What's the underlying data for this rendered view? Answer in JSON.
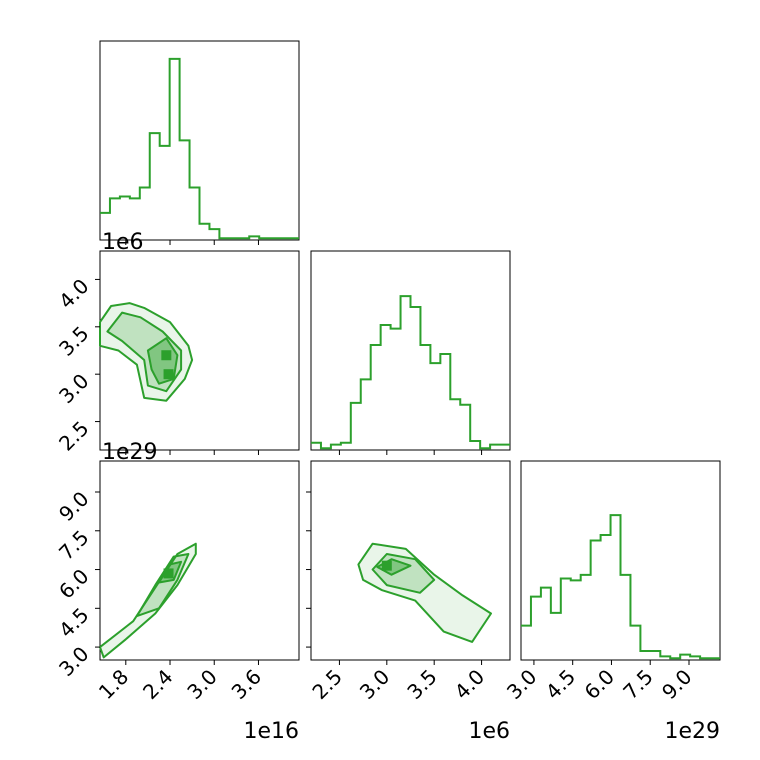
{
  "chart_data": {
    "type": "corner",
    "color": "#2ca02c",
    "parameters": [
      {
        "index": 0,
        "range": [
          1.45e+16,
          4.15e+16
        ],
        "ticks": [
          1.8e+16,
          2.4e+16,
          3e+16,
          3.6e+16
        ],
        "tick_labels": [
          "1.8",
          "2.4",
          "3.0",
          "3.6"
        ],
        "offset_label": "1e16",
        "hist_counts": [
          0.15,
          0.23,
          0.24,
          0.23,
          0.29,
          0.59,
          0.52,
          1.0,
          0.55,
          0.29,
          0.09,
          0.06,
          0.01,
          0.01,
          0.01,
          0.02,
          0.01,
          0.01,
          0.01,
          0.01
        ]
      },
      {
        "index": 1,
        "range": [
          2200000.0,
          4300000.0
        ],
        "ticks": [
          2500000.0,
          3000000.0,
          3500000.0,
          4000000.0
        ],
        "tick_labels": [
          "2.5",
          "3.0",
          "3.5",
          "4.0"
        ],
        "offset_label": "1e6",
        "hist_counts": [
          0.04,
          0.01,
          0.03,
          0.04,
          0.26,
          0.39,
          0.58,
          0.69,
          0.67,
          0.85,
          0.79,
          0.58,
          0.48,
          0.53,
          0.28,
          0.25,
          0.05,
          0.01,
          0.03,
          0.03
        ]
      },
      {
        "index": 2,
        "range": [
          2.5e+29,
          1.02e+30
        ],
        "ticks": [
          3e+29,
          4.5e+29,
          6e+29,
          7.5e+29,
          9e+29
        ],
        "tick_labels": [
          "3.0",
          "4.5",
          "6.0",
          "7.5",
          "9.0"
        ],
        "offset_label": "1e29",
        "hist_counts": [
          0.19,
          0.35,
          0.4,
          0.26,
          0.45,
          0.44,
          0.47,
          0.66,
          0.69,
          0.8,
          0.47,
          0.19,
          0.05,
          0.05,
          0.02,
          0.01,
          0.03,
          0.02,
          0.01,
          0.01
        ]
      }
    ],
    "panels_2d": [
      {
        "x": 0,
        "y": 1,
        "levels": [
          [
            [
              1.45e+16,
              3550000.0
            ],
            [
              1.6e+16,
              3720000.0
            ],
            [
              1.85e+16,
              3750000.0
            ],
            [
              2.05e+16,
              3700000.0
            ],
            [
              2.4e+16,
              3550000.0
            ],
            [
              2.65e+16,
              3300000.0
            ],
            [
              2.7e+16,
              3150000.0
            ],
            [
              2.6e+16,
              2950000.0
            ],
            [
              2.35e+16,
              2720000.0
            ],
            [
              2.05e+16,
              2750000.0
            ],
            [
              1.95e+16,
              3100000.0
            ],
            [
              1.7e+16,
              3250000.0
            ],
            [
              1.45e+16,
              3300000.0
            ]
          ],
          [
            [
              1.55e+16,
              3450000.0
            ],
            [
              1.75e+16,
              3650000.0
            ],
            [
              2e+16,
              3600000.0
            ],
            [
              2.3e+16,
              3450000.0
            ],
            [
              2.55e+16,
              3250000.0
            ],
            [
              2.55e+16,
              3050000.0
            ],
            [
              2.35e+16,
              2820000.0
            ],
            [
              2.1e+16,
              2880000.0
            ],
            [
              2.05e+16,
              3150000.0
            ],
            [
              1.75e+16,
              3350000.0
            ]
          ],
          [
            [
              2.1e+16,
              3250000.0
            ],
            [
              2.35e+16,
              3380000.0
            ],
            [
              2.5e+16,
              3200000.0
            ],
            [
              2.45e+16,
              2950000.0
            ],
            [
              2.25e+16,
              2900000.0
            ],
            [
              2.15e+16,
              3050000.0
            ]
          ]
        ],
        "peaks": [
          [
            2.38e+16,
            3000000.0
          ],
          [
            2.35e+16,
            3200000.0
          ]
        ]
      },
      {
        "x": 0,
        "y": 2,
        "levels": [
          [
            [
              1.45e+16,
              3e+29
            ],
            [
              1.9e+16,
              4e+29
            ],
            [
              2.2e+16,
              5.3e+29
            ],
            [
              2.5e+16,
              6.6e+29
            ],
            [
              2.75e+16,
              7e+29
            ],
            [
              2.75e+16,
              6.6e+29
            ],
            [
              2.5e+16,
              5.4e+29
            ],
            [
              2.2e+16,
              4.3e+29
            ],
            [
              1.8e+16,
              3.3e+29
            ],
            [
              1.5e+16,
              2.6e+29
            ]
          ],
          [
            [
              1.95e+16,
              4.2e+29
            ],
            [
              2.2e+16,
              5.4e+29
            ],
            [
              2.45e+16,
              6.5e+29
            ],
            [
              2.65e+16,
              6.6e+29
            ],
            [
              2.5e+16,
              5.6e+29
            ],
            [
              2.25e+16,
              4.5e+29
            ]
          ],
          [
            [
              2.25e+16,
              5.5e+29
            ],
            [
              2.4e+16,
              6.2e+29
            ],
            [
              2.55e+16,
              6.3e+29
            ],
            [
              2.45e+16,
              5.6e+29
            ]
          ]
        ],
        "peaks": [
          [
            2.38e+16,
            5.85e+29
          ]
        ]
      },
      {
        "x": 1,
        "y": 2,
        "levels": [
          [
            [
              2700000.0,
              6.2e+29
            ],
            [
              2850000.0,
              7e+29
            ],
            [
              3200000.0,
              6.8e+29
            ],
            [
              3500000.0,
              5.8e+29
            ],
            [
              3800000.0,
              5e+29
            ],
            [
              4100000.0,
              4.3e+29
            ],
            [
              3900000.0,
              3.2e+29
            ],
            [
              3600000.0,
              3.6e+29
            ],
            [
              3300000.0,
              4.8e+29
            ],
            [
              2950000.0,
              5.2e+29
            ],
            [
              2750000.0,
              5.6e+29
            ]
          ],
          [
            [
              2850000.0,
              6e+29
            ],
            [
              3000000.0,
              6.6e+29
            ],
            [
              3300000.0,
              6.4e+29
            ],
            [
              3500000.0,
              5.6e+29
            ],
            [
              3350000.0,
              5.1e+29
            ],
            [
              3000000.0,
              5.4e+29
            ]
          ],
          [
            [
              2900000.0,
              6.1e+29
            ],
            [
              3050000.0,
              6.4e+29
            ],
            [
              3250000.0,
              6.15e+29
            ],
            [
              3050000.0,
              5.8e+29
            ]
          ]
        ],
        "peaks": [
          [
            3000000.0,
            6.15e+29
          ]
        ]
      }
    ]
  }
}
